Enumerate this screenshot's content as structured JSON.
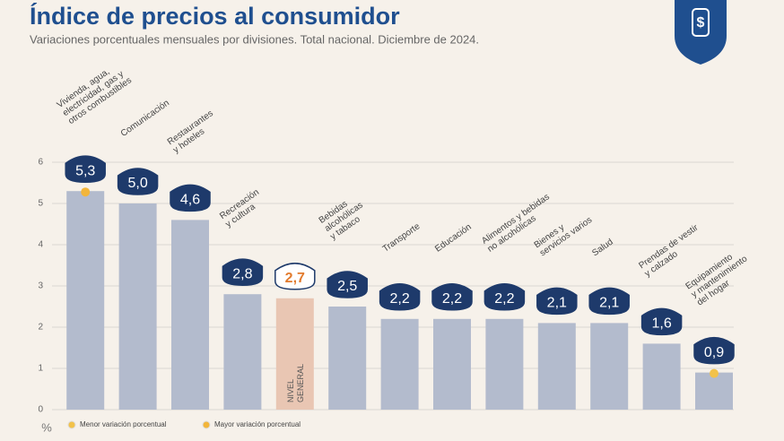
{
  "chart_data": {
    "type": "bar",
    "title": "Índice de precios al consumidor",
    "subtitle": "Variaciones porcentuales mensuales por divisiones. Total nacional. Diciembre de 2024.",
    "y_label": "%",
    "categories": [
      [
        "Vivienda, agua,",
        "electricidad, gas y",
        "otros combustibles"
      ],
      [
        "Comunicación"
      ],
      [
        "Restaurantes",
        "y hoteles"
      ],
      [
        "Recreación",
        "y cultura"
      ],
      [
        "NIVEL",
        "GENERAL"
      ],
      [
        "Bebidas",
        "alcohólicas",
        "y tabaco"
      ],
      [
        "Transporte"
      ],
      [
        "Educación"
      ],
      [
        "Alimentos y bebidas",
        "no alcohólicas"
      ],
      [
        "Bienes y",
        "servicios varios"
      ],
      [
        "Salud"
      ],
      [
        "Prendas de vestir",
        "y calzado"
      ],
      [
        "Equipamiento",
        "y mantenimiento",
        "del hogar"
      ]
    ],
    "values": [
      5.3,
      5.0,
      4.6,
      2.8,
      2.7,
      2.5,
      2.2,
      2.2,
      2.2,
      2.1,
      2.1,
      1.6,
      0.9
    ],
    "value_labels": [
      "5,3",
      "5,0",
      "4,6",
      "2,8",
      "2,7",
      "2,5",
      "2,2",
      "2,2",
      "2,2",
      "2,1",
      "2,1",
      "1,6",
      "0,9"
    ],
    "color": "#b3bbcd",
    "highlight_index": 4,
    "highlight_color": "#e9c6b3",
    "highlight_label_color": "#e27b2e",
    "ylim": [
      0,
      6
    ],
    "yticks": [
      0,
      1,
      2,
      3,
      4,
      5,
      6
    ],
    "grid": true,
    "legend": [
      {
        "name": "Menor variación porcentual",
        "color": "#f2c24a"
      },
      {
        "name": "Mayor variación porcentual",
        "color": "#f2b53a"
      }
    ]
  }
}
